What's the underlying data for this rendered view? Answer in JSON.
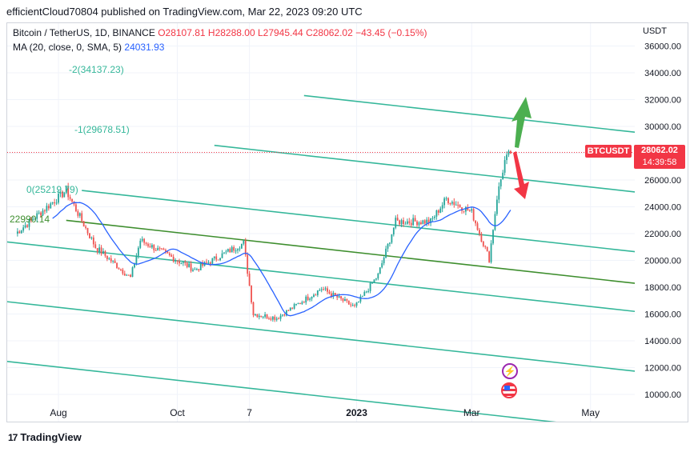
{
  "header": {
    "published": "efficientCloud70804 published on TradingView.com, Mar 22, 2023 09:20 UTC"
  },
  "legend": {
    "symbol": "Bitcoin / TetherUS, 1D, BINANCE",
    "open": "O28107.81",
    "high": "H28288.00",
    "low": "L27945.44",
    "close": "C28062.02",
    "change": "−43.45 (−0.15%)",
    "ma_label": "MA (20, close, 0, SMA, 5)",
    "ma_value": "24031.93"
  },
  "badge": {
    "ticker": "BTCUSDT",
    "price": "28062.02",
    "countdown": "14:39:58"
  },
  "footer": {
    "brand": "TradingView",
    "logo_text": "17"
  },
  "colors": {
    "up": "#26a69a",
    "down": "#ef5350",
    "ma": "#2962ff",
    "channel": "#35b79a",
    "median": "#3e8e2e",
    "price_line": "#f23645",
    "arrow_up": "#4caf50",
    "arrow_down": "#f23645"
  },
  "chart_data": {
    "type": "candlestick",
    "unit_label": "USDT",
    "yticks": [
      "36000.00",
      "34000.00",
      "32000.00",
      "30000.00",
      "28000.00",
      "26000.00",
      "24000.00",
      "22000.00",
      "20000.00",
      "18000.00",
      "16000.00",
      "14000.00",
      "12000.00",
      "10000.00"
    ],
    "xticks": [
      "Aug",
      "Oct",
      "7",
      "2023",
      "Mar",
      "May"
    ],
    "last_price": 28062.02,
    "fib_labels": [
      {
        "text": "-2(34137.23)"
      },
      {
        "text": "-1(29678.51)"
      },
      {
        "text": "0(25219.79)"
      },
      {
        "text": "22990.14"
      }
    ],
    "anchors": [
      {
        "date": "2022-07-10",
        "value": 22000
      },
      {
        "date": "2022-08-05",
        "value": 25200
      },
      {
        "date": "2022-08-20",
        "value": 21000
      },
      {
        "date": "2022-09-07",
        "value": 18700
      },
      {
        "date": "2022-09-12",
        "value": 21500
      },
      {
        "date": "2022-10-10",
        "value": 19300
      },
      {
        "date": "2022-11-04",
        "value": 21300
      },
      {
        "date": "2022-11-09",
        "value": 16000
      },
      {
        "date": "2022-11-21",
        "value": 15700
      },
      {
        "date": "2022-12-14",
        "value": 17900
      },
      {
        "date": "2022-12-31",
        "value": 16500
      },
      {
        "date": "2023-01-12",
        "value": 18900
      },
      {
        "date": "2023-01-21",
        "value": 22900
      },
      {
        "date": "2023-02-08",
        "value": 22900
      },
      {
        "date": "2023-02-16",
        "value": 24600
      },
      {
        "date": "2023-03-01",
        "value": 23600
      },
      {
        "date": "2023-03-10",
        "value": 20100
      },
      {
        "date": "2023-03-14",
        "value": 24700
      },
      {
        "date": "2023-03-18",
        "value": 27400
      },
      {
        "date": "2023-03-21",
        "value": 28062
      }
    ]
  }
}
